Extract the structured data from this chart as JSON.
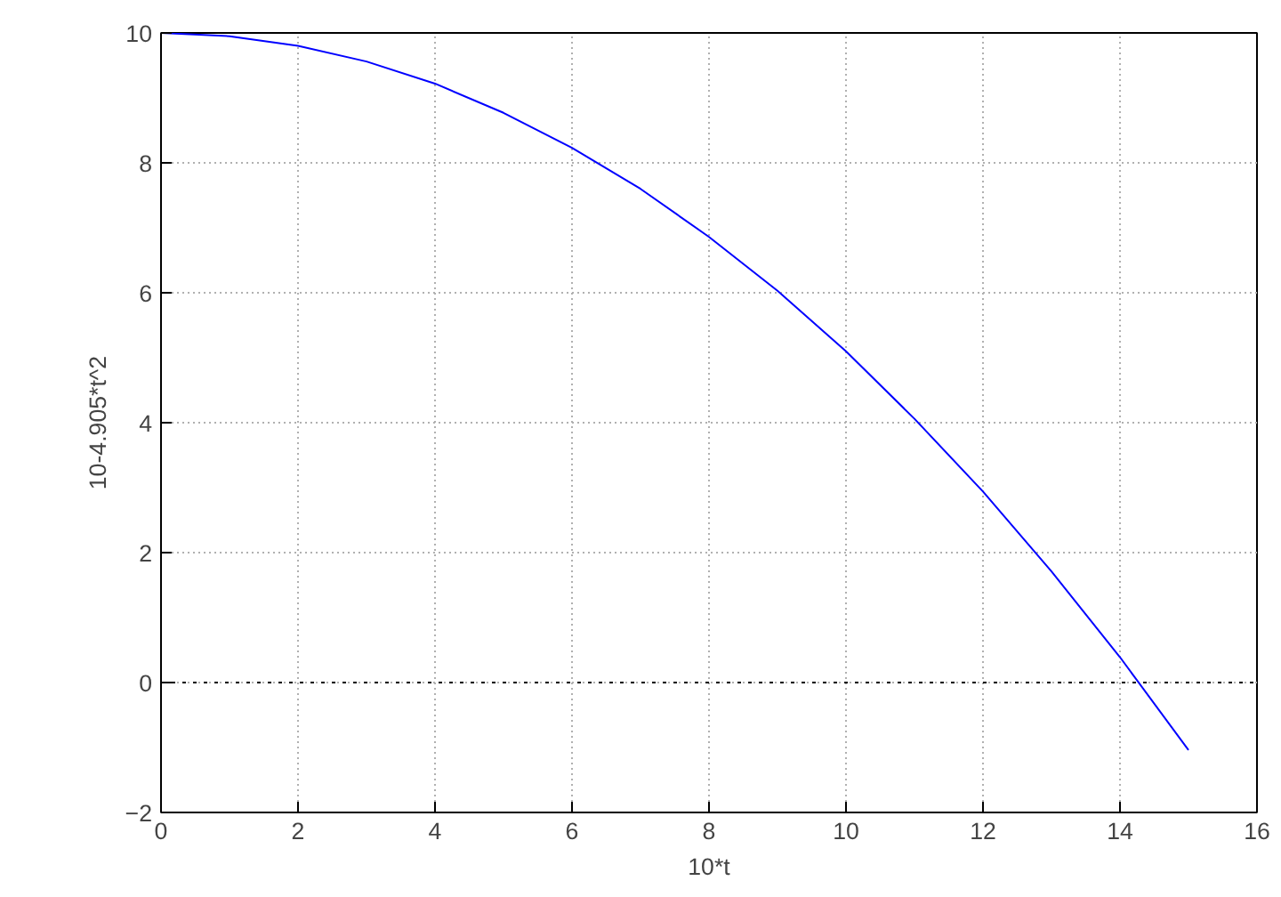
{
  "chart_data": {
    "type": "line",
    "xlabel": "10*t",
    "ylabel": "10-4.905*t^2",
    "x": [
      0,
      1,
      2,
      3,
      4,
      5,
      6,
      7,
      8,
      9,
      10,
      11,
      12,
      13,
      14,
      15
    ],
    "series": [
      {
        "color": "#0000ff",
        "values": [
          10,
          9.95,
          9.8,
          9.56,
          9.22,
          8.77,
          8.23,
          7.6,
          6.86,
          6.03,
          5.1,
          4.06,
          2.94,
          1.71,
          0.39,
          -1.04
        ]
      }
    ],
    "xlim": [
      0,
      16
    ],
    "ylim": [
      -2,
      10
    ],
    "xticks": [
      0,
      2,
      4,
      6,
      8,
      10,
      12,
      14,
      16
    ],
    "yticks": [
      -2,
      0,
      2,
      4,
      6,
      8,
      10
    ],
    "grid": true,
    "marker": "none",
    "line_style": "solid",
    "ref_lines": [
      {
        "axis": "y",
        "value": 0,
        "color": "#000000",
        "line_style": "dotted"
      }
    ]
  }
}
